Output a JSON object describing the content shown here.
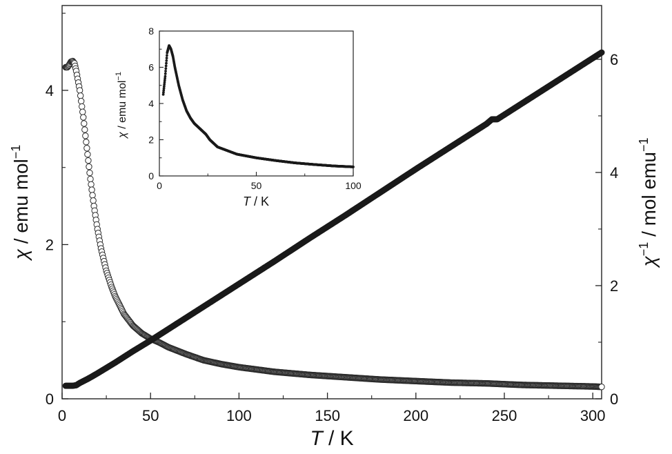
{
  "chart_data": [
    {
      "type": "scatter",
      "xlabel_symbol": "T",
      "xlabel_unit": " / K",
      "ylabel_left_symbol": "χ",
      "ylabel_left_unit": " / emu mol",
      "ylabel_left_sup": "−1",
      "ylabel_right_symbol": "χ",
      "ylabel_right_sup1": "−1",
      "ylabel_right_unit": " / mol emu",
      "ylabel_right_sup2": "−1",
      "xlim": [
        0,
        305
      ],
      "ylim_left": [
        0,
        5.1
      ],
      "ylim_right": [
        0,
        6.95
      ],
      "x_ticks": [
        "0",
        "50",
        "100",
        "150",
        "200",
        "250",
        "300"
      ],
      "y_left_ticks": [
        "0",
        "2",
        "4"
      ],
      "y_right_ticks": [
        "0",
        "2",
        "4",
        "6"
      ],
      "series": [
        {
          "axis": "left",
          "marker": "open-circle",
          "x": [
            2,
            3,
            4,
            5,
            6,
            7,
            8,
            10,
            12,
            14,
            16,
            18,
            20,
            22,
            25,
            28,
            30,
            35,
            40,
            45,
            50,
            55,
            60,
            70,
            80,
            90,
            100,
            120,
            140,
            160,
            180,
            200,
            220,
            240,
            260,
            280,
            300,
            305
          ],
          "y": [
            4.3,
            4.3,
            4.33,
            4.37,
            4.38,
            4.35,
            4.25,
            4.0,
            3.65,
            3.25,
            2.85,
            2.5,
            2.2,
            1.95,
            1.66,
            1.45,
            1.33,
            1.1,
            0.95,
            0.85,
            0.78,
            0.73,
            0.67,
            0.58,
            0.5,
            0.45,
            0.41,
            0.35,
            0.31,
            0.28,
            0.25,
            0.23,
            0.21,
            0.2,
            0.18,
            0.17,
            0.16,
            0.155
          ]
        },
        {
          "axis": "right",
          "marker": "filled-circle",
          "x": [
            2,
            4,
            6,
            8,
            10,
            15,
            20,
            30,
            40,
            50,
            60,
            80,
            100,
            120,
            140,
            160,
            180,
            200,
            220,
            240,
            243,
            246,
            248,
            260,
            280,
            300,
            305
          ],
          "y": [
            0.23,
            0.23,
            0.23,
            0.24,
            0.28,
            0.36,
            0.45,
            0.64,
            0.84,
            1.03,
            1.23,
            1.63,
            2.03,
            2.43,
            2.84,
            3.24,
            3.65,
            4.06,
            4.46,
            4.86,
            4.94,
            4.94,
            4.98,
            5.22,
            5.62,
            6.02,
            6.12
          ]
        }
      ]
    },
    {
      "type": "scatter",
      "inset": true,
      "xlabel_symbol": "T",
      "xlabel_unit": " / K",
      "ylabel_symbol": "χ",
      "ylabel_unit": " / emu mol",
      "ylabel_sup": "−1",
      "xlim": [
        0,
        100
      ],
      "ylim": [
        0,
        8
      ],
      "x_ticks": [
        "0",
        "50",
        "100"
      ],
      "y_ticks": [
        "0",
        "2",
        "4",
        "6",
        "8"
      ],
      "series": [
        {
          "marker": "filled-circle",
          "x": [
            2,
            3,
            4,
            5,
            6,
            7,
            8,
            10,
            12,
            14,
            16,
            18,
            20,
            22,
            24,
            26,
            28,
            30,
            35,
            40,
            50,
            60,
            70,
            80,
            90,
            100
          ],
          "y": [
            4.5,
            5.5,
            6.8,
            7.2,
            7.0,
            6.6,
            6.0,
            5.0,
            4.2,
            3.6,
            3.2,
            2.9,
            2.7,
            2.5,
            2.3,
            2.0,
            1.8,
            1.6,
            1.4,
            1.2,
            1.0,
            0.85,
            0.72,
            0.63,
            0.55,
            0.5
          ]
        }
      ]
    }
  ]
}
